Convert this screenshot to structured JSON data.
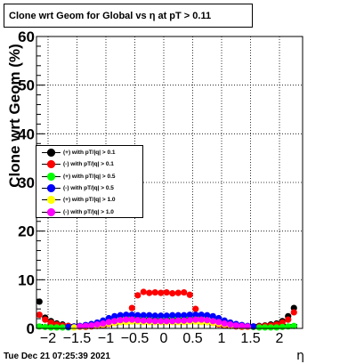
{
  "chart_data": {
    "type": "scatter",
    "title": "Clone wrt Geom for Global vs   η at pT > 0.11",
    "xlabel": "η",
    "ylabel": "Clone wrt Geom (%)",
    "xlim": [
      -2.2,
      2.4
    ],
    "ylim": [
      0,
      60
    ],
    "xticks": [
      -2,
      -1.5,
      -1,
      -0.5,
      0,
      0.5,
      1,
      1.5,
      2
    ],
    "xtick_labels": [
      "−2",
      "−1.5",
      "−1",
      "−0.5",
      "0",
      "0.5",
      "1",
      "1.5",
      "2"
    ],
    "yticks": [
      0,
      10,
      20,
      30,
      40,
      50,
      60
    ],
    "ytick_labels": [
      "0",
      "10",
      "20",
      "30",
      "40",
      "50",
      "60"
    ],
    "grid": true,
    "legend_position": "left-middle",
    "series": [
      {
        "name": "(+) with pT/|q| > 0.1",
        "color": "#000000",
        "x": [
          -2.15,
          -2.05,
          -1.95,
          -1.85,
          -1.75,
          -1.65,
          -1.55,
          -1.45,
          -1.35,
          -1.25,
          -1.15,
          -1.05,
          -0.95,
          -0.85,
          -0.75,
          -0.65,
          -0.55,
          -0.45,
          -0.35,
          -0.25,
          -0.15,
          -0.05,
          0.05,
          0.15,
          0.25,
          0.35,
          0.45,
          0.55,
          0.65,
          0.75,
          0.85,
          0.95,
          1.05,
          1.15,
          1.25,
          1.35,
          1.45,
          1.55,
          1.65,
          1.75,
          1.85,
          1.95,
          2.05,
          2.15,
          2.25
        ],
        "y": [
          5.5,
          2.2,
          1.5,
          1.0,
          0.8,
          0.5,
          0.4,
          0.4,
          0.4,
          0.5,
          0.6,
          0.7,
          0.9,
          1.1,
          1.3,
          1.6,
          1.8,
          2.0,
          2.0,
          2.0,
          2.0,
          1.9,
          1.9,
          2.0,
          2.0,
          2.0,
          2.0,
          1.8,
          1.6,
          1.3,
          1.1,
          0.9,
          0.7,
          0.6,
          0.5,
          0.4,
          0.4,
          0.4,
          0.5,
          0.6,
          0.8,
          1.0,
          1.5,
          2.5,
          4.2
        ]
      },
      {
        "name": "(-) with pT/|q| > 0.1",
        "color": "#ff0000",
        "x": [
          -2.15,
          -2.05,
          -1.95,
          -1.85,
          -1.75,
          -1.65,
          -1.55,
          -1.45,
          -1.35,
          -1.25,
          -1.15,
          -1.05,
          -0.95,
          -0.85,
          -0.75,
          -0.65,
          -0.55,
          -0.45,
          -0.35,
          -0.25,
          -0.15,
          -0.05,
          0.05,
          0.15,
          0.25,
          0.35,
          0.45,
          0.55,
          0.65,
          0.75,
          0.85,
          0.95,
          1.05,
          1.15,
          1.25,
          1.35,
          1.45,
          1.55,
          1.65,
          1.75,
          1.85,
          1.95,
          2.05,
          2.15,
          2.25
        ],
        "y": [
          2.8,
          1.8,
          1.2,
          0.8,
          0.6,
          0.5,
          0.4,
          0.3,
          0.3,
          0.4,
          0.5,
          0.7,
          0.9,
          1.2,
          1.6,
          2.4,
          4.2,
          6.8,
          7.5,
          7.3,
          7.4,
          7.3,
          7.4,
          7.2,
          7.3,
          7.4,
          6.9,
          4.0,
          2.3,
          1.5,
          1.1,
          0.8,
          0.6,
          0.5,
          0.4,
          0.3,
          0.3,
          0.3,
          0.4,
          0.5,
          0.6,
          0.8,
          1.2,
          1.8,
          3.3
        ]
      },
      {
        "name": "(+) with pT/|q| > 0.5",
        "color": "#00ff00",
        "x": [
          -2.15,
          -2.05,
          -1.95,
          -1.85,
          -1.75,
          -1.65,
          -1.55,
          -1.45,
          -1.35,
          -1.25,
          -1.15,
          -1.05,
          -0.95,
          -0.85,
          -0.75,
          -0.65,
          -0.55,
          -0.45,
          -0.35,
          -0.25,
          -0.15,
          -0.05,
          0.05,
          0.15,
          0.25,
          0.35,
          0.45,
          0.55,
          0.65,
          0.75,
          0.85,
          0.95,
          1.05,
          1.15,
          1.25,
          1.35,
          1.45,
          1.55,
          1.65,
          1.75,
          1.85,
          1.95,
          2.05,
          2.15,
          2.25
        ],
        "y": [
          0.4,
          0.3,
          0.2,
          0.2,
          0.2,
          0.2,
          0.3,
          0.4,
          0.6,
          0.8,
          1.1,
          1.4,
          1.9,
          2.3,
          2.5,
          2.6,
          2.6,
          2.6,
          2.5,
          2.5,
          2.5,
          2.4,
          2.4,
          2.5,
          2.5,
          2.5,
          2.6,
          2.6,
          2.6,
          2.5,
          2.3,
          1.9,
          1.4,
          1.1,
          0.8,
          0.6,
          0.4,
          0.3,
          0.2,
          0.2,
          0.2,
          0.2,
          0.3,
          0.4,
          0.5
        ]
      },
      {
        "name": "(-) with pT/|q| > 0.5",
        "color": "#0000ff",
        "x": [
          -1.65,
          -1.55,
          -1.45,
          -1.35,
          -1.25,
          -1.15,
          -1.05,
          -0.95,
          -0.85,
          -0.75,
          -0.65,
          -0.55,
          -0.45,
          -0.35,
          -0.25,
          -0.15,
          -0.05,
          0.05,
          0.15,
          0.25,
          0.35,
          0.45,
          0.55,
          0.65,
          0.75,
          0.85,
          0.95,
          1.05,
          1.15,
          1.25,
          1.35,
          1.45,
          1.55
        ],
        "y": [
          0.3,
          0.4,
          0.5,
          0.7,
          0.9,
          1.2,
          1.6,
          2.1,
          2.5,
          2.7,
          2.8,
          2.8,
          2.7,
          2.7,
          2.7,
          2.6,
          2.6,
          2.6,
          2.7,
          2.7,
          2.7,
          2.8,
          2.8,
          2.8,
          2.7,
          2.5,
          2.1,
          1.6,
          1.2,
          0.9,
          0.7,
          0.5,
          0.4
        ]
      },
      {
        "name": "(+) with pT/|q| > 1.0",
        "color": "#ffff00",
        "x": [
          -1.55,
          -1.45,
          -1.35,
          -1.25,
          -1.15,
          -1.05,
          -0.95,
          -0.85,
          -0.75,
          -0.65,
          -0.55,
          -0.45,
          -0.35,
          -0.25,
          -0.15,
          -0.05,
          0.05,
          0.15,
          0.25,
          0.35,
          0.45,
          0.55,
          0.65,
          0.75,
          0.85,
          0.95,
          1.05,
          1.15,
          1.25,
          1.35,
          1.45
        ],
        "y": [
          0.2,
          0.3,
          0.4,
          0.5,
          0.6,
          0.8,
          1.0,
          1.1,
          1.3,
          1.3,
          1.4,
          1.4,
          1.3,
          1.3,
          1.3,
          1.3,
          1.3,
          1.3,
          1.3,
          1.3,
          1.4,
          1.4,
          1.3,
          1.3,
          1.1,
          1.0,
          0.8,
          0.6,
          0.5,
          0.4,
          0.3
        ]
      },
      {
        "name": "(-) with pT/|q| > 1.0",
        "color": "#ff00ff",
        "x": [
          -1.45,
          -1.35,
          -1.25,
          -1.15,
          -1.05,
          -0.95,
          -0.85,
          -0.75,
          -0.65,
          -0.55,
          -0.45,
          -0.35,
          -0.25,
          -0.15,
          -0.05,
          0.05,
          0.15,
          0.25,
          0.35,
          0.45,
          0.55,
          0.65,
          0.75,
          0.85,
          0.95,
          1.05,
          1.15,
          1.25,
          1.35,
          1.45
        ],
        "y": [
          0.4,
          0.5,
          0.6,
          0.8,
          1.0,
          1.3,
          1.5,
          1.7,
          1.8,
          1.8,
          1.7,
          1.6,
          1.6,
          1.5,
          1.5,
          1.5,
          1.5,
          1.6,
          1.6,
          1.7,
          1.8,
          1.8,
          1.7,
          1.5,
          1.3,
          1.0,
          0.8,
          0.6,
          0.5,
          0.4
        ]
      }
    ]
  },
  "footer": {
    "timestamp": "Tue Dec 21 07:25:39 2021"
  }
}
